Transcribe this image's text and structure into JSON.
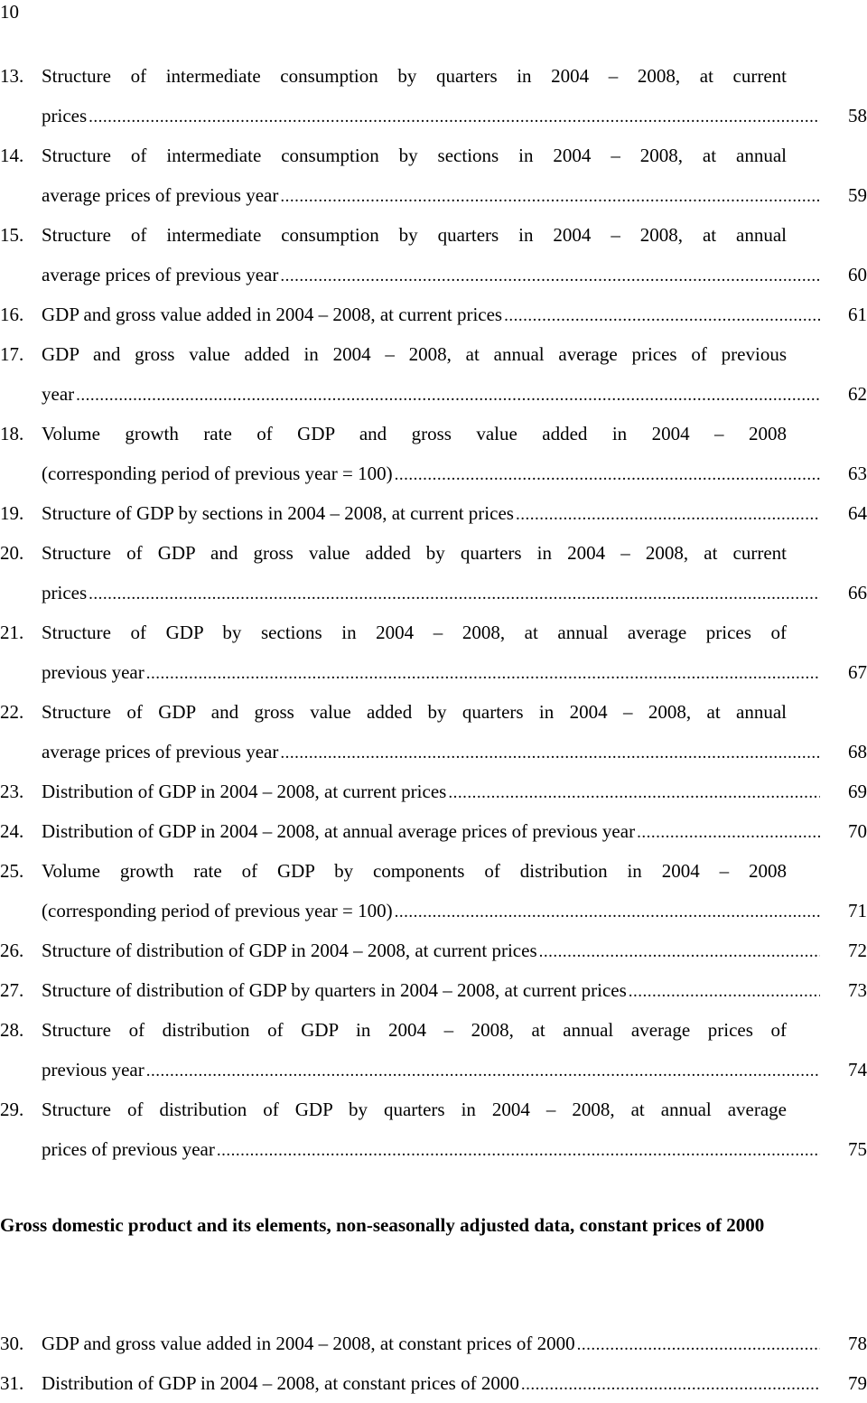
{
  "page_number": "10",
  "entries_a": [
    {
      "num": "13.",
      "lines": [
        "Structure of intermediate consumption by quarters in 2004 – 2008, at current",
        "prices"
      ],
      "page": "58"
    },
    {
      "num": "14.",
      "lines": [
        "Structure of intermediate consumption by sections in 2004 – 2008, at annual",
        "average prices of previous year"
      ],
      "page": "59"
    },
    {
      "num": "15.",
      "lines": [
        "Structure of intermediate consumption by quarters in 2004 – 2008, at annual",
        "average prices of previous year"
      ],
      "page": "60"
    },
    {
      "num": "16.",
      "lines": [
        "GDP and gross value added in 2004 – 2008, at current prices"
      ],
      "page": "61"
    },
    {
      "num": "17.",
      "lines": [
        "GDP and gross value added in 2004 – 2008, at annual average prices of previous",
        "year"
      ],
      "page": "62"
    },
    {
      "num": "18.",
      "lines": [
        "Volume growth rate of GDP and gross value added in 2004 – 2008",
        "(corresponding period of previous year = 100)"
      ],
      "page": "63"
    },
    {
      "num": "19.",
      "lines": [
        "Structure of GDP by sections in 2004 – 2008, at current prices"
      ],
      "page": "64"
    },
    {
      "num": "20.",
      "lines": [
        "Structure of GDP and gross value added by quarters in 2004 – 2008, at current",
        "prices"
      ],
      "page": "66"
    },
    {
      "num": "21.",
      "lines": [
        "Structure of GDP by sections in 2004 – 2008, at annual average prices of",
        "previous year"
      ],
      "page": "67"
    },
    {
      "num": "22.",
      "lines": [
        "Structure of GDP and gross value added by quarters in 2004 – 2008, at annual",
        "average prices of previous year"
      ],
      "page": "68"
    },
    {
      "num": "23.",
      "lines": [
        "Distribution of GDP in 2004 – 2008,  at current prices"
      ],
      "page": "69"
    },
    {
      "num": "24.",
      "lines": [
        "Distribution of GDP in 2004 – 2008, at annual average prices of previous year"
      ],
      "page": "70"
    },
    {
      "num": "25.",
      "lines": [
        "Volume growth rate of GDP by components of distribution in 2004 – 2008",
        "(corresponding period of previous year = 100)"
      ],
      "page": "71"
    },
    {
      "num": "26.",
      "lines": [
        "Structure of distribution of GDP in 2004 – 2008, at current prices"
      ],
      "page": "72"
    },
    {
      "num": "27.",
      "lines": [
        "Structure of distribution of GDP by quarters in 2004 – 2008, at current prices"
      ],
      "page": "73"
    },
    {
      "num": "28.",
      "lines": [
        "Structure of distribution of GDP in 2004 – 2008, at annual average prices of",
        "previous year"
      ],
      "page": "74"
    },
    {
      "num": "29.",
      "lines": [
        "Structure of distribution of GDP by quarters in 2004 – 2008, at annual average",
        "prices of previous year"
      ],
      "page": "75"
    }
  ],
  "section_heading": "Gross domestic product and its elements, non-seasonally adjusted data, constant prices of  2000",
  "entries_b": [
    {
      "num": "30.",
      "lines": [
        "GDP and gross value added in 2004 – 2008, at constant prices of 2000"
      ],
      "page": "78"
    },
    {
      "num": "31.",
      "lines": [
        "Distribution of GDP in 2004 – 2008, at constant prices of 2000"
      ],
      "page": "79"
    }
  ]
}
